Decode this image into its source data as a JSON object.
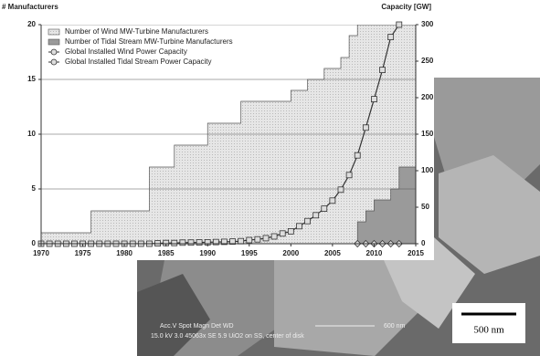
{
  "chart_data": {
    "type": "step-area-line",
    "y_label": "# Manufacturers",
    "y2_label": "Capacity [GW]",
    "xlim": [
      1970,
      2015
    ],
    "xticks": [
      1970,
      1975,
      1980,
      1985,
      1990,
      1995,
      2000,
      2005,
      2010,
      2015
    ],
    "ylim": [
      0,
      20
    ],
    "yticks": [
      0,
      5,
      10,
      15,
      20
    ],
    "y2lim": [
      0,
      300
    ],
    "y2ticks": [
      0,
      50,
      100,
      150,
      200,
      250,
      300
    ],
    "grid": true,
    "legend": "top-left",
    "series": [
      {
        "name": "Number of Wind MW-Turbine Manufacturers",
        "style": "step-area",
        "color": "#e4e4e4",
        "x": [
          1970,
          1976,
          1983,
          1986,
          1990,
          1994,
          2000,
          2002,
          2004,
          2006,
          2007,
          2008
        ],
        "values": [
          1,
          3,
          7,
          9,
          11,
          13,
          14,
          15,
          16,
          17,
          19,
          20
        ]
      },
      {
        "name": "Number of Tidal Stream MW-Turbine Manufacturers",
        "style": "step-area",
        "color": "#9a9a9a",
        "x": [
          2008,
          2009,
          2010,
          2012,
          2013
        ],
        "values": [
          2,
          3,
          4,
          5,
          7
        ]
      },
      {
        "name": "Global Installed Wind Power Capacity",
        "style": "line",
        "marker": "square",
        "color": "#333333",
        "axis": "y2",
        "x": [
          1970,
          1971,
          1972,
          1973,
          1974,
          1975,
          1976,
          1977,
          1978,
          1979,
          1980,
          1981,
          1982,
          1983,
          1984,
          1985,
          1986,
          1987,
          1988,
          1989,
          1990,
          1991,
          1992,
          1993,
          1994,
          1995,
          1996,
          1997,
          1998,
          1999,
          2000,
          2001,
          2002,
          2003,
          2004,
          2005,
          2006,
          2007,
          2008,
          2009,
          2010,
          2011,
          2012,
          2013
        ],
        "values": [
          0,
          0,
          0,
          0,
          0,
          0,
          0,
          0,
          0,
          0,
          0,
          0,
          0,
          0,
          0.5,
          1,
          1,
          1.5,
          1.6,
          1.8,
          2,
          2.3,
          2.6,
          3,
          3.5,
          5,
          6,
          7.6,
          10,
          14,
          17,
          24,
          31,
          39,
          48,
          59,
          74,
          94,
          121,
          159,
          198,
          238,
          283,
          300
        ]
      },
      {
        "name": "Global Installed Tidal Stream Power Capacity",
        "style": "line",
        "marker": "diamond",
        "color": "#333333",
        "axis": "y2",
        "x": [
          2008,
          2009,
          2010,
          2011,
          2012,
          2013
        ],
        "values": [
          0,
          0,
          0,
          0,
          0,
          0
        ]
      }
    ]
  },
  "image": {
    "info_header": "Acc.V  Spot  Magn    Det  WD",
    "info_scale": "600 nm",
    "info_line": "15.0 kV 3.0  45063x   SE   5.9   UiO2 on SS, center of disk",
    "scale_bar": "500 nm"
  }
}
